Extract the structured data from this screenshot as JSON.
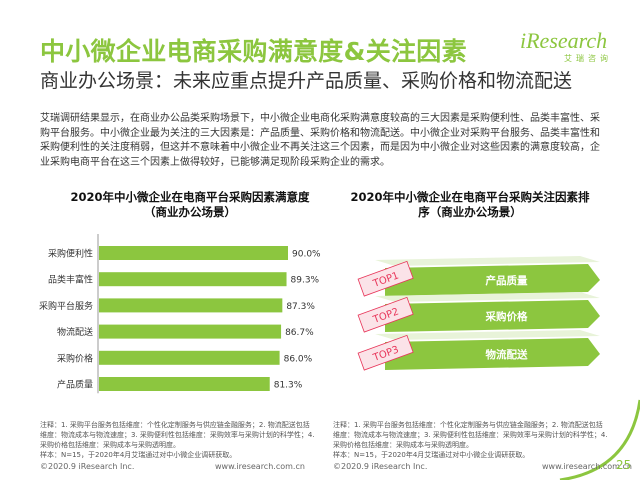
{
  "header": {
    "title": "中小微企业电商采购满意度&关注因素",
    "subtitle": "商业办公场景：未来应重点提升产品质量、采购价格和物流配送",
    "logo_text": "iResearch",
    "logo_cn": "艾瑞咨询"
  },
  "intro": "艾瑞调研结果显示，在商业办公品类采购场景下，中小微企业电商化采购满意度较高的三大因素是采购便利性、品类丰富性、采购平台服务。中小微企业最为关注的三大因素是：产品质量、采购价格和物流配送。中小微企业对采购平台服务、品类丰富性和采购便利性的关注度稍弱，但这并不意味着中小微企业不再关注这三个因素，而是因为中小微企业对这些因素的满意度较高，企业采购电商平台在这三个因素上做得较好，已能够满足现阶段采购企业的需求。",
  "chart_data": [
    {
      "type": "bar",
      "orientation": "horizontal",
      "title": "2020年中小微企业在电商平台采购因素满意度（商业办公场景）",
      "categories": [
        "采购便利性",
        "品类丰富性",
        "采购平台服务",
        "物流配送",
        "采购价格",
        "产品质量"
      ],
      "values": [
        90.0,
        89.3,
        87.3,
        86.7,
        86.0,
        81.3
      ],
      "value_labels": [
        "90.0%",
        "89.3%",
        "87.3%",
        "86.7%",
        "86.0%",
        "81.3%"
      ],
      "unit": "%",
      "color": "#8cc63f"
    },
    {
      "type": "table",
      "title": "2020年中小微企业在电商平台采购关注因素排序（商业办公场景）",
      "ranks": [
        "TOP1",
        "TOP2",
        "TOP3"
      ],
      "items": [
        "产品质量",
        "采购价格",
        "物流配送"
      ],
      "color": "#8cc63f",
      "rank_color": "#e8365a"
    }
  ],
  "notes": {
    "left": "注释：1. 采购平台服务包括维度：个性化定制服务与供应链金融服务；2. 物流配送包括维度：物流成本与物流速度；3. 采购便利性包括维度：采购效率与采购计划的科学性；4. 采购价格包括维度：采购成本与采购透明度。\n样本：N=15，于2020年4月艾瑞通过对中小微企业调研获取。",
    "right": "注释：1. 采购平台服务包括维度：个性化定制服务与供应链金融服务；2. 物流配送包括维度：物流成本与物流速度；3. 采购便利性包括维度：采购效率与采购计划的科学性；4. 采购价格包括维度：采购成本与采购透明度。\n样本：N=15，于2020年4月艾瑞通过对中小微企业调研获取。"
  },
  "footer": {
    "copyright": "©2020.9 iResearch Inc.",
    "url": "www.iresearch.com.cn",
    "page": "25"
  }
}
